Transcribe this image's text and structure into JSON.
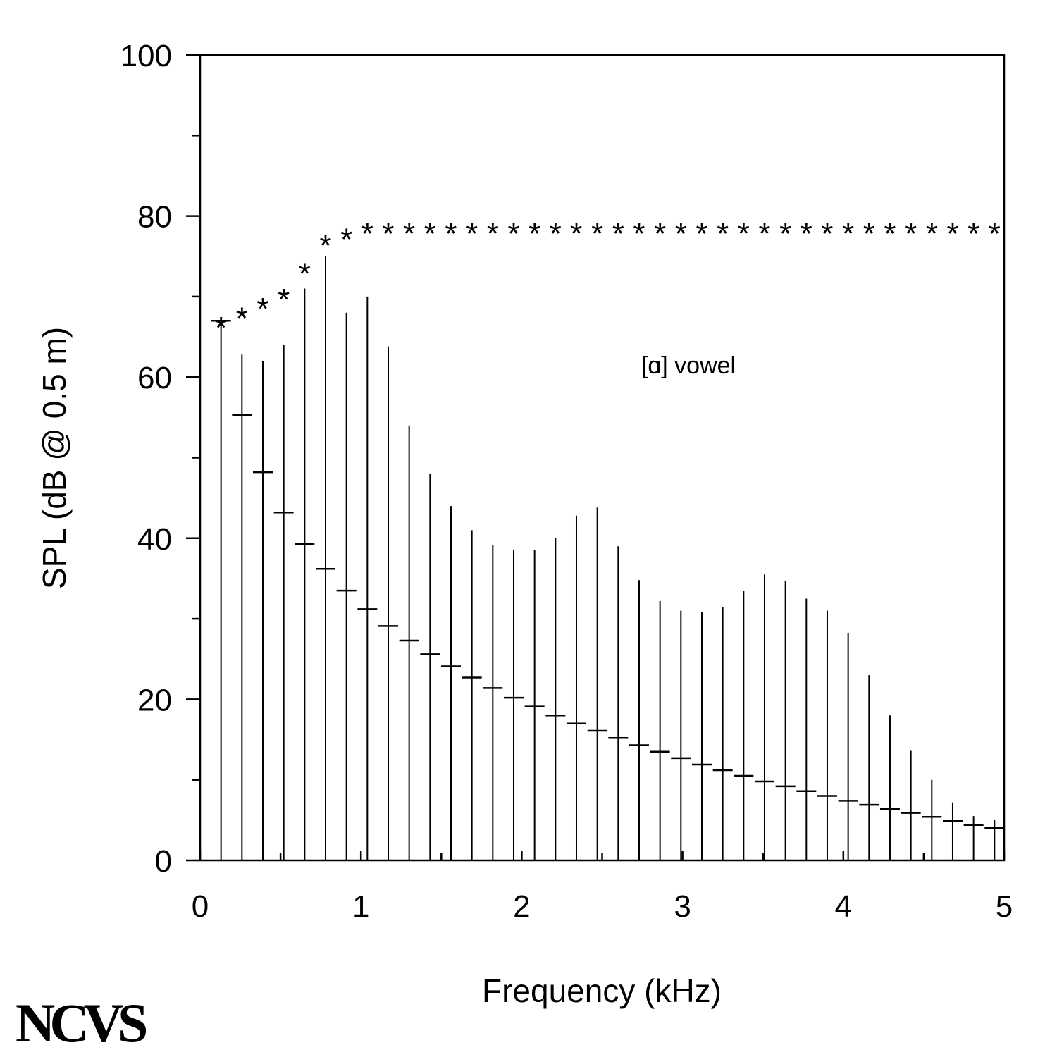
{
  "chart_data": {
    "type": "bar",
    "xlabel": "Frequency (kHz)",
    "ylabel": "SPL (dB @ 0.5 m)",
    "xlim": [
      0,
      5
    ],
    "ylim": [
      0,
      100
    ],
    "xticks": [
      "0",
      "1",
      "2",
      "3",
      "4",
      "5"
    ],
    "yticks": [
      "0",
      "20",
      "40",
      "60",
      "80",
      "100"
    ],
    "annotation": "[ɑ] vowel",
    "grid": false,
    "harmonic_frequencies_khz": [
      0.13,
      0.26,
      0.39,
      0.52,
      0.65,
      0.78,
      0.91,
      1.04,
      1.17,
      1.3,
      1.43,
      1.56,
      1.69,
      1.82,
      1.95,
      2.08,
      2.21,
      2.34,
      2.47,
      2.6,
      2.73,
      2.86,
      2.99,
      3.12,
      3.25,
      3.38,
      3.51,
      3.64,
      3.77,
      3.9,
      4.03,
      4.16,
      4.29,
      4.42,
      4.55,
      4.68,
      4.81,
      4.94
    ],
    "series": [
      {
        "marker": "vertical line",
        "values": [
          67,
          62.8,
          62,
          64,
          71,
          75,
          68,
          70,
          63.8,
          54,
          48,
          44,
          41,
          39.2,
          38.5,
          38.5,
          40,
          42.8,
          43.8,
          39,
          34.8,
          32.2,
          31,
          30.8,
          31.5,
          33.5,
          35.5,
          34.7,
          32.5,
          31,
          28.2,
          23,
          18,
          13.6,
          10,
          7.2,
          5.5,
          5
        ]
      },
      {
        "marker": "horizontal dash",
        "values": [
          67,
          55.3,
          48.2,
          43.2,
          39.3,
          36.2,
          33.5,
          31.2,
          29.1,
          27.3,
          25.6,
          24.1,
          22.7,
          21.4,
          20.2,
          19.1,
          18,
          17,
          16.1,
          15.2,
          14.3,
          13.5,
          12.7,
          11.9,
          11.2,
          10.5,
          9.8,
          9.2,
          8.6,
          8,
          7.4,
          6.9,
          6.4,
          5.9,
          5.4,
          4.9,
          4.4,
          4
        ]
      },
      {
        "marker": "*",
        "values": [
          67,
          68.2,
          69.4,
          70.5,
          73.7,
          77.2,
          78,
          78.7,
          78.7,
          78.7,
          78.7,
          78.7,
          78.7,
          78.7,
          78.7,
          78.7,
          78.7,
          78.7,
          78.7,
          78.7,
          78.7,
          78.7,
          78.7,
          78.7,
          78.7,
          78.7,
          78.7,
          78.7,
          78.7,
          78.7,
          78.7,
          78.7,
          78.7,
          78.7,
          78.7,
          78.7,
          78.7,
          78.7
        ]
      }
    ]
  },
  "logo_text": "NCVS"
}
